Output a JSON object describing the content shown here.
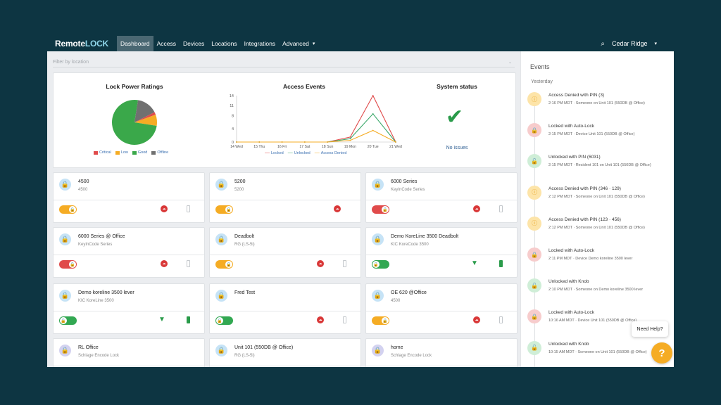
{
  "app": {
    "logo_part1": "Remote",
    "logo_part2": "LOCK",
    "nav": [
      "Dashboard",
      "Access",
      "Devices",
      "Locations",
      "Integrations",
      "Advanced"
    ],
    "active_nav": "Dashboard",
    "location": "Cedar Ridge"
  },
  "filter": {
    "placeholder": "Filter by location"
  },
  "stats": {
    "power_title": "Lock Power Ratings",
    "access_title": "Access Events",
    "system_title": "System status",
    "system_status": "No issues",
    "power_legend": [
      "Critical",
      "Low",
      "Good",
      "Offline"
    ],
    "access_legend": [
      "Locked",
      "Unlocked",
      "Access Denied"
    ]
  },
  "chart_data": [
    {
      "type": "pie",
      "title": "Lock Power Ratings",
      "labels": [
        "Critical",
        "Low",
        "Good",
        "Offline"
      ],
      "values": [
        2,
        8,
        75,
        15
      ],
      "colors": [
        "#e04b4b",
        "#f5ac24",
        "#3aa84a",
        "#707070"
      ]
    },
    {
      "type": "line",
      "title": "Access Events",
      "categories": [
        "14 Wed",
        "15 Thu",
        "16 Fri",
        "17 Sat",
        "18 Sun",
        "19 Mon",
        "20 Tue",
        "21 Wed"
      ],
      "yticks": [
        0,
        4,
        8,
        11,
        14
      ],
      "ylim": [
        0,
        14
      ],
      "series": [
        {
          "name": "Locked",
          "color": "#e04b4b",
          "values": [
            0,
            0,
            0,
            0,
            0,
            1.5,
            14,
            0
          ]
        },
        {
          "name": "Unlocked",
          "color": "#3aa86a",
          "values": [
            0,
            0,
            0,
            0,
            0,
            1,
            8.5,
            0
          ]
        },
        {
          "name": "Access Denied",
          "color": "#f5ac24",
          "values": [
            0,
            0,
            0,
            0,
            0,
            0.5,
            3.5,
            0
          ]
        }
      ]
    }
  ],
  "cards": [
    {
      "name": "4500",
      "model": "4500",
      "icon": "blue",
      "toggle": "orange",
      "cloud": true,
      "status": "battery-grey"
    },
    {
      "name": "5200",
      "model": "5200",
      "icon": "blue",
      "toggle": "orange",
      "cloud": true,
      "status": "none"
    },
    {
      "name": "6000 Series",
      "model": "KeyInCode Series",
      "icon": "blue",
      "toggle": "red",
      "cloud": true,
      "status": "battery-grey"
    },
    {
      "name": "6000 Series @ Office",
      "model": "KeyInCode Series",
      "icon": "blue",
      "toggle": "red",
      "cloud": true,
      "status": "battery-grey"
    },
    {
      "name": "Deadbolt",
      "model": "RG (LS-5i)",
      "icon": "blue",
      "toggle": "orange",
      "cloud": true,
      "status": "battery-grey"
    },
    {
      "name": "Demo KoreLine 3500 Deadbolt",
      "model": "KIC KoreCode 3500",
      "icon": "blue",
      "toggle": "green",
      "cloud": false,
      "status": "wifi-battery-green"
    },
    {
      "name": "Demo koreline 3500 lever",
      "model": "KIC KoreLine 3500",
      "icon": "blue",
      "toggle": "green",
      "cloud": false,
      "status": "wifi-battery-green"
    },
    {
      "name": "Fred Test",
      "model": "",
      "icon": "blue",
      "toggle": "green",
      "cloud": true,
      "status": "battery-grey"
    },
    {
      "name": "OE 620 @Office",
      "model": "4500",
      "icon": "blue",
      "toggle": "orange",
      "cloud": true,
      "status": "battery-grey"
    },
    {
      "name": "RL Office",
      "model": "Schlage Encode Lock",
      "icon": "purple",
      "toggle": "",
      "cloud": false,
      "status": "none"
    },
    {
      "name": "Unit 101 (550DB @ Office)",
      "model": "RG (LS-5i)",
      "icon": "blue",
      "toggle": "",
      "cloud": false,
      "status": "none"
    },
    {
      "name": "home",
      "model": "Schlage Encode Lock",
      "icon": "purple",
      "toggle": "",
      "cloud": false,
      "status": "none"
    }
  ],
  "events": {
    "title": "Events",
    "day": "Yesterday",
    "items": [
      {
        "type": "yellow",
        "icon": "info",
        "title": "Access Denied with PIN (3)",
        "detail": "2:16 PM MDT · Someone on Unit 101 (550DB @ Office)"
      },
      {
        "type": "red",
        "icon": "lock",
        "title": "Locked with Auto-Lock",
        "detail": "2:15 PM MDT · Device Unit 101 (550DB @ Office)"
      },
      {
        "type": "green",
        "icon": "unlock",
        "title": "Unlocked with PIN (6031)",
        "detail": "2:15 PM MDT · Resident 101 on Unit 101 (550DB @ Office)"
      },
      {
        "type": "yellow",
        "icon": "info",
        "title": "Access Denied with PIN (346 · 129)",
        "detail": "2:12 PM MDT · Someone on Unit 101 (550DB @ Office)"
      },
      {
        "type": "yellow",
        "icon": "info",
        "title": "Access Denied with PIN (123 · 456)",
        "detail": "2:12 PM MDT · Someone on Unit 101 (550DB @ Office)"
      },
      {
        "type": "red",
        "icon": "lock",
        "title": "Locked with Auto-Lock",
        "detail": "2:11 PM MDT · Device Demo koreline 3500 lever"
      },
      {
        "type": "green",
        "icon": "unlock",
        "title": "Unlocked with Knob",
        "detail": "2:10 PM MDT · Someone on Demo koreline 3500 lever"
      },
      {
        "type": "red",
        "icon": "lock",
        "title": "Locked with Auto-Lock",
        "detail": "10:16 AM MDT · Device Unit 101 (550DB @ Office)"
      },
      {
        "type": "green",
        "icon": "unlock",
        "title": "Unlocked with Knob",
        "detail": "10:15 AM MDT · Someone on Unit 101 (550DB @ Office)"
      }
    ]
  },
  "help": {
    "bubble": "Need Help?",
    "button": "?"
  }
}
